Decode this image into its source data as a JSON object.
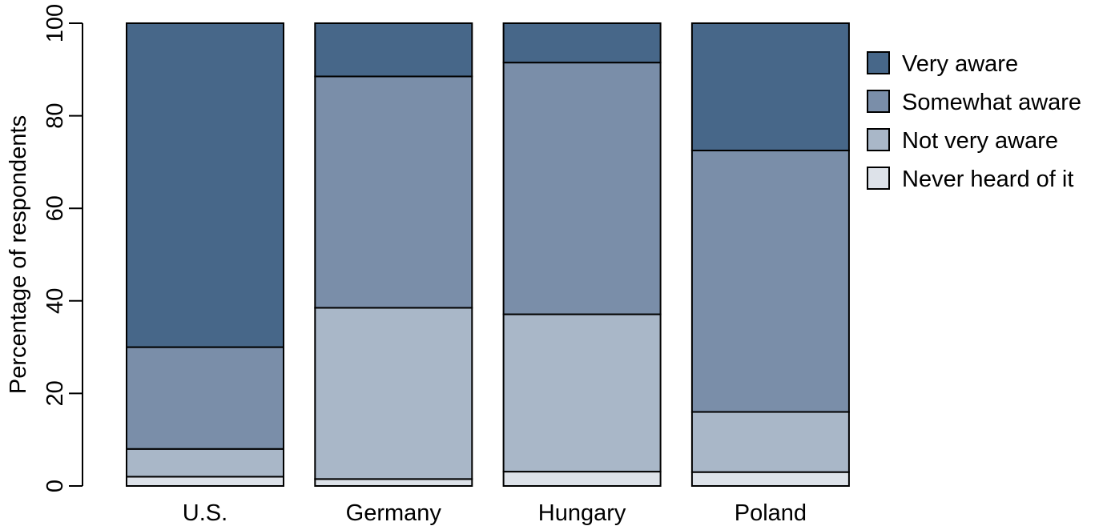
{
  "chart_data": {
    "type": "bar",
    "stacked": true,
    "categories": [
      "U.S.",
      "Germany",
      "Hungary",
      "Poland"
    ],
    "series": [
      {
        "name": "Never heard of it",
        "color": "#dde2e9",
        "values": [
          2.0,
          1.5,
          3.1,
          3.0
        ]
      },
      {
        "name": "Not very aware",
        "color": "#a9b7c8",
        "values": [
          6.0,
          37.0,
          34.0,
          13.0
        ]
      },
      {
        "name": "Somewhat aware",
        "color": "#7a8ea9",
        "values": [
          22.0,
          50.0,
          54.4,
          56.5
        ]
      },
      {
        "name": "Very aware",
        "color": "#476789",
        "values": [
          70.0,
          11.5,
          8.5,
          27.5
        ]
      }
    ],
    "legend_order": [
      "Very aware",
      "Somewhat aware",
      "Not very aware",
      "Never heard of it"
    ],
    "legend_position": "right",
    "ylabel": "Percentage of respondents",
    "xlabel": "",
    "ylim": [
      0,
      100
    ],
    "yticks": [
      0,
      20,
      40,
      60,
      80,
      100
    ],
    "grid": false
  }
}
